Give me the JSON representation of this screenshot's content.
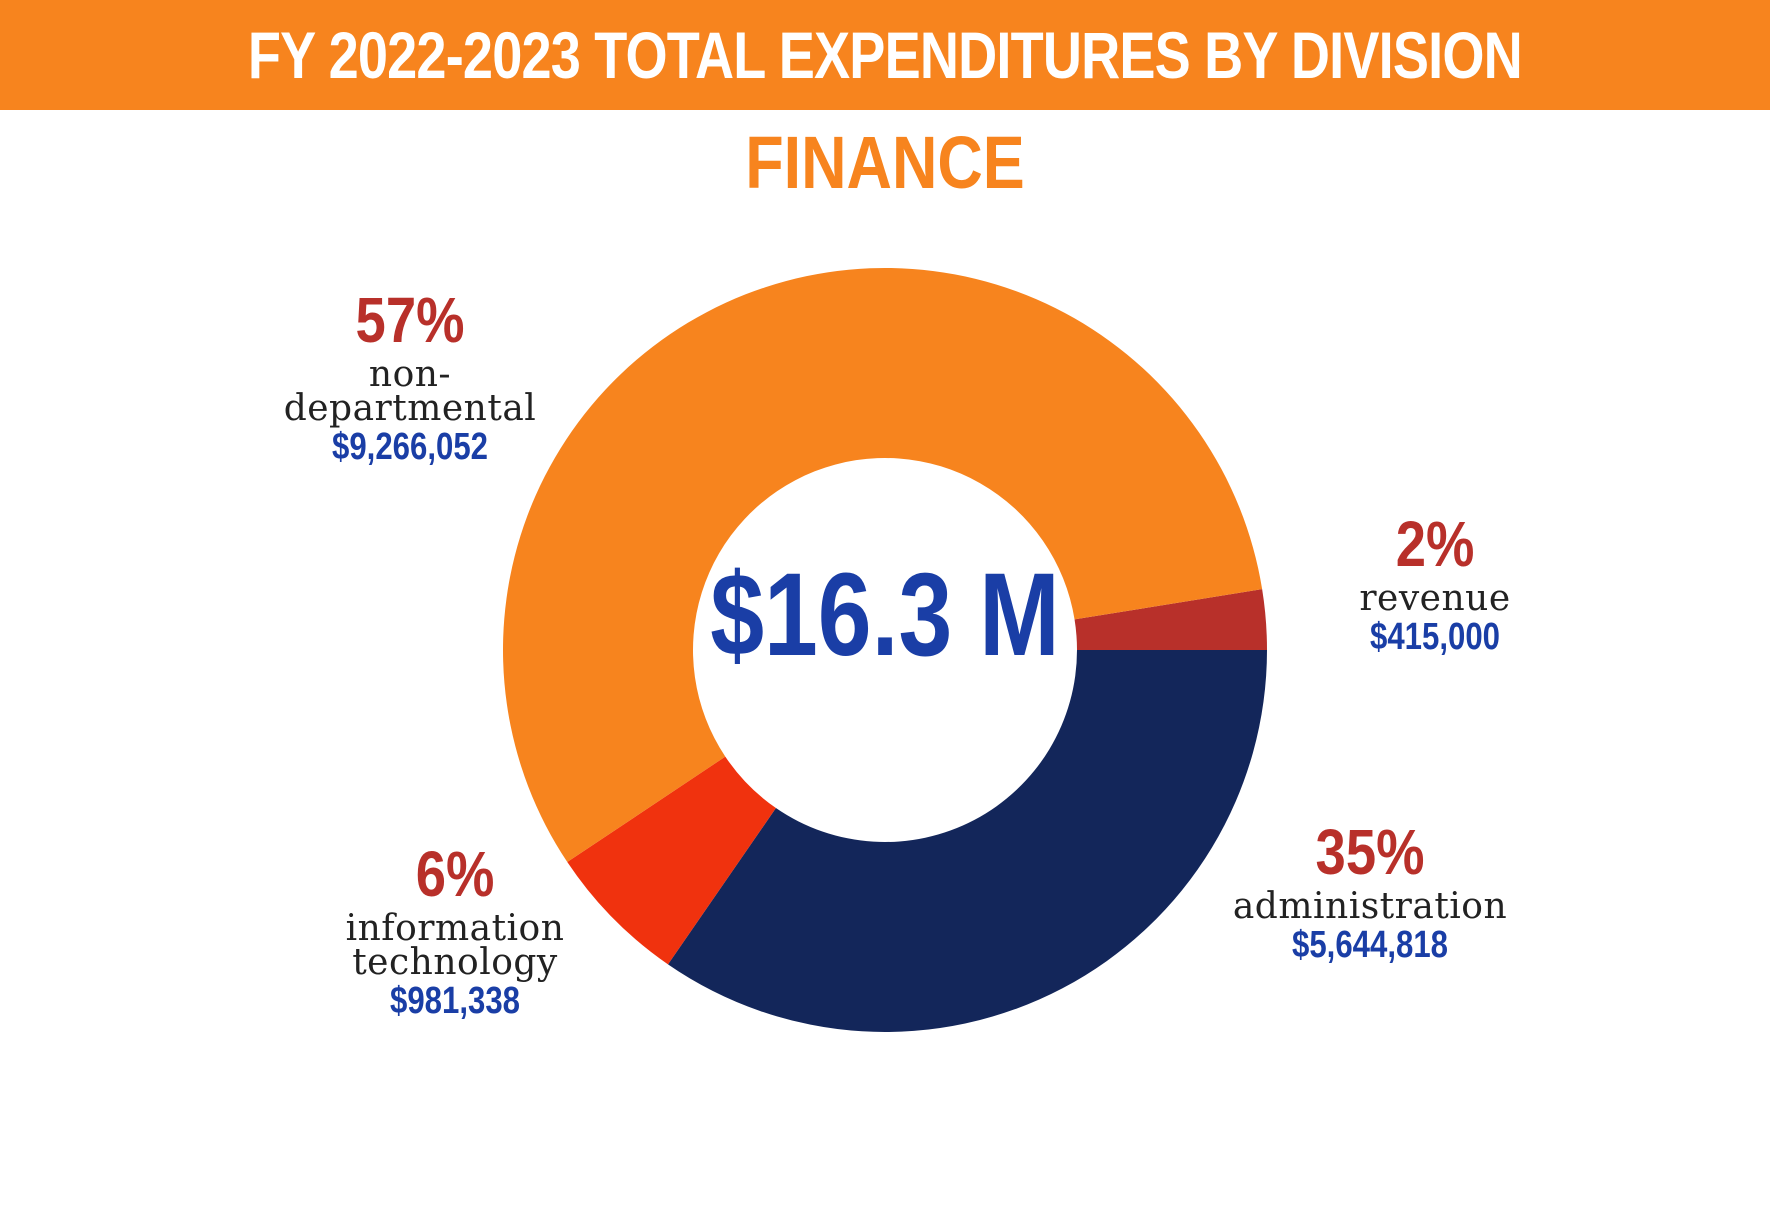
{
  "header": {
    "title": "FY 2022-2023 TOTAL EXPENDITURES BY DIVISION",
    "subtitle": "FINANCE"
  },
  "center_label": "$16.3 M",
  "colors": {
    "banner": "#f7841e",
    "non_departmental": "#f7841e",
    "revenue": "#b8302a",
    "administration": "#13265a",
    "information_technology": "#f0320e",
    "percent_text": "#b8302a",
    "amount_text": "#1a3ea6"
  },
  "chart_data": {
    "type": "pie",
    "title": "FY 2022-2023 TOTAL EXPENDITURES BY DIVISION",
    "subtitle": "FINANCE",
    "center_label": "$16.3 M",
    "slices": [
      {
        "key": "revenue",
        "label": "revenue",
        "percent": 2,
        "percent_label": "2%",
        "value": 415000,
        "value_label": "$415,000",
        "color": "#b8302a"
      },
      {
        "key": "administration",
        "label": "administration",
        "percent": 35,
        "percent_label": "35%",
        "value": 5644818,
        "value_label": "$5,644,818",
        "color": "#13265a"
      },
      {
        "key": "information_technology",
        "label": "information technology",
        "percent": 6,
        "percent_label": "6%",
        "value": 981338,
        "value_label": "$981,338",
        "color": "#f0320e"
      },
      {
        "key": "non_departmental",
        "label": "non-departmental",
        "percent": 57,
        "percent_label": "57%",
        "value": 9266052,
        "value_label": "$9,266,052",
        "color": "#f7841e"
      }
    ]
  }
}
